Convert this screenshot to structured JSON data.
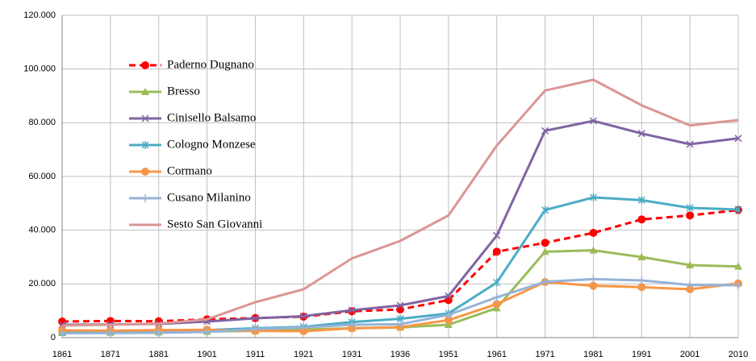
{
  "chart_data": {
    "type": "line",
    "categories": [
      "1861",
      "1871",
      "1881",
      "1901",
      "1911",
      "1921",
      "1931",
      "1936",
      "1951",
      "1961",
      "1971",
      "1981",
      "1991",
      "2001",
      "2010"
    ],
    "series": [
      {
        "name": "Paderno Dugnano",
        "color": "#ff0000",
        "marker": "circle",
        "dashed": true,
        "values": [
          6000,
          6200,
          6100,
          6800,
          7300,
          7800,
          9800,
          10500,
          14000,
          32000,
          35300,
          39000,
          44000,
          45500,
          47500
        ]
      },
      {
        "name": "Bresso",
        "color": "#9bbb59",
        "marker": "triangle",
        "values": [
          1800,
          1900,
          2000,
          2300,
          2500,
          3000,
          3500,
          3800,
          4800,
          11000,
          32000,
          32500,
          30000,
          27000,
          26500
        ]
      },
      {
        "name": "Cinisello Balsamo",
        "color": "#8064a2",
        "marker": "x",
        "values": [
          4800,
          4900,
          5100,
          6000,
          7200,
          8000,
          10200,
          12000,
          15500,
          38000,
          77000,
          80700,
          76000,
          72000,
          74200
        ]
      },
      {
        "name": "Cologno Monzese",
        "color": "#4bacc6",
        "marker": "star",
        "values": [
          2000,
          2200,
          2400,
          2800,
          3500,
          4000,
          5800,
          7000,
          9000,
          20500,
          47500,
          52200,
          51200,
          48300,
          47700
        ]
      },
      {
        "name": "Cormano",
        "color": "#f79646",
        "marker": "circle",
        "values": [
          2700,
          2600,
          2800,
          2900,
          2500,
          2400,
          3500,
          3900,
          6500,
          12500,
          20700,
          19300,
          18800,
          18000,
          20200
        ]
      },
      {
        "name": "Cusano Milanino",
        "color": "#95b3d7",
        "marker": "plus",
        "values": [
          1600,
          1700,
          1800,
          2100,
          3200,
          3800,
          4800,
          5000,
          8500,
          15000,
          20800,
          21800,
          21300,
          19600,
          19500
        ]
      },
      {
        "name": "Sesto San Giovanni",
        "color": "#d99694",
        "marker": "none",
        "values": [
          4500,
          4800,
          5200,
          6800,
          13200,
          18000,
          29500,
          36000,
          45500,
          71500,
          92000,
          96000,
          86500,
          79000,
          81000
        ]
      }
    ],
    "ylim": [
      0,
      120000
    ],
    "yticks": [
      0,
      {
        "value": 20000,
        "label": "20.000"
      },
      {
        "value": 40000,
        "label": "40.000"
      },
      {
        "value": 60000,
        "label": "60.000"
      },
      {
        "value": 80000,
        "label": "80.000"
      },
      {
        "value": 100000,
        "label": "100.000"
      },
      {
        "value": 120000,
        "label": "120.000"
      }
    ],
    "grid": true,
    "legend": "upper-left"
  }
}
